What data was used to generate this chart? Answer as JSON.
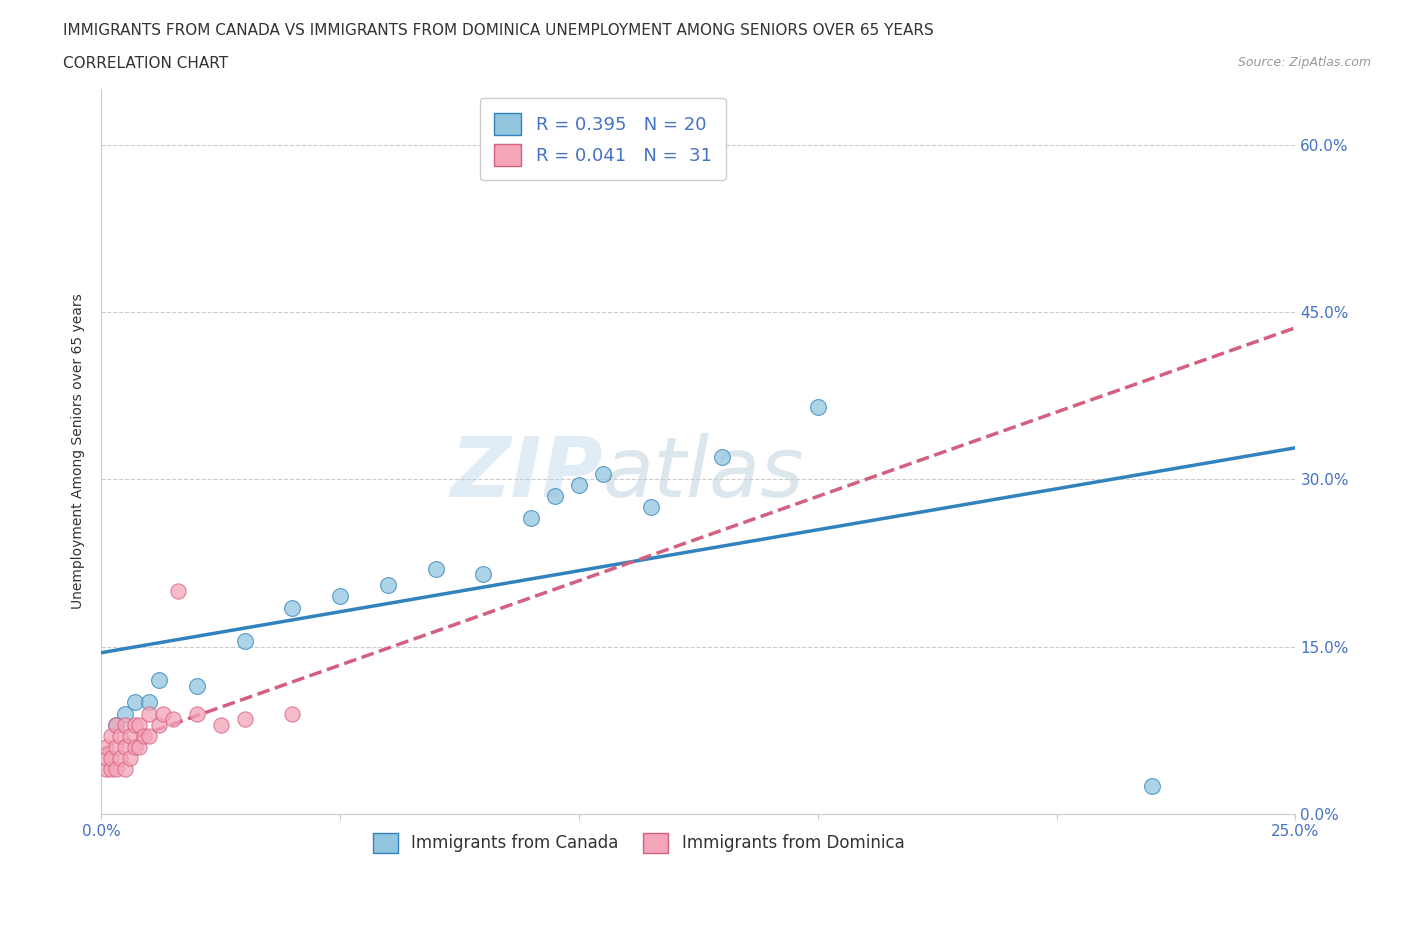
{
  "title_line1": "IMMIGRANTS FROM CANADA VS IMMIGRANTS FROM DOMINICA UNEMPLOYMENT AMONG SENIORS OVER 65 YEARS",
  "title_line2": "CORRELATION CHART",
  "source_text": "Source: ZipAtlas.com",
  "ylabel": "Unemployment Among Seniors over 65 years",
  "xlim": [
    0.0,
    0.25
  ],
  "ylim": [
    0.0,
    0.65
  ],
  "canada_color": "#92c5de",
  "canada_color_line": "#3182bd",
  "dominica_color": "#f4a5b8",
  "dominica_color_line": "#d46080",
  "r_canada": 0.395,
  "n_canada": 20,
  "r_dominica": 0.041,
  "n_dominica": 31,
  "legend_label_canada": "Immigrants from Canada",
  "legend_label_dominica": "Immigrants from Dominica",
  "watermark_zip": "ZIP",
  "watermark_atlas": "atlas",
  "background_color": "#ffffff",
  "canada_x": [
    0.003,
    0.005,
    0.007,
    0.01,
    0.012,
    0.02,
    0.03,
    0.04,
    0.05,
    0.06,
    0.07,
    0.08,
    0.09,
    0.095,
    0.1,
    0.105,
    0.115,
    0.13,
    0.15,
    0.22
  ],
  "canada_y": [
    0.08,
    0.09,
    0.1,
    0.1,
    0.12,
    0.115,
    0.155,
    0.185,
    0.195,
    0.205,
    0.22,
    0.215,
    0.265,
    0.285,
    0.295,
    0.305,
    0.275,
    0.32,
    0.365,
    0.025
  ],
  "dominica_x": [
    0.001,
    0.001,
    0.001,
    0.002,
    0.002,
    0.002,
    0.003,
    0.003,
    0.003,
    0.004,
    0.004,
    0.005,
    0.005,
    0.005,
    0.006,
    0.006,
    0.007,
    0.007,
    0.008,
    0.008,
    0.009,
    0.01,
    0.01,
    0.012,
    0.013,
    0.015,
    0.016,
    0.02,
    0.025,
    0.03,
    0.04
  ],
  "dominica_y": [
    0.04,
    0.05,
    0.06,
    0.04,
    0.05,
    0.07,
    0.04,
    0.06,
    0.08,
    0.05,
    0.07,
    0.04,
    0.06,
    0.08,
    0.05,
    0.07,
    0.06,
    0.08,
    0.06,
    0.08,
    0.07,
    0.07,
    0.09,
    0.08,
    0.09,
    0.085,
    0.2,
    0.09,
    0.08,
    0.085,
    0.09
  ],
  "title_fontsize": 11,
  "source_fontsize": 9,
  "axis_label_fontsize": 10,
  "legend_fontsize": 13,
  "tick_fontsize": 11
}
